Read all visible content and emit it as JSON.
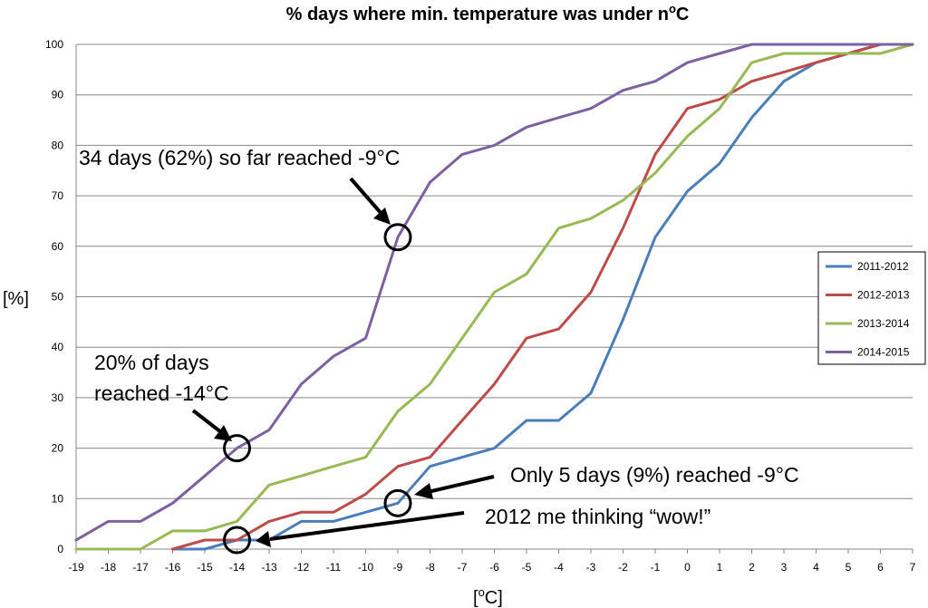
{
  "chart_data": {
    "type": "line",
    "title_main": "% days where min. temperature was under n",
    "title_sup": "o",
    "title_unit": "C",
    "xlabel_pre": "[",
    "xlabel_sup": "o",
    "xlabel_post": "C]",
    "ylabel": "[%]",
    "x": [
      -19,
      -18,
      -17,
      -16,
      -15,
      -14,
      -13,
      -12,
      -11,
      -10,
      -9,
      -8,
      -7,
      -6,
      -5,
      -4,
      -3,
      -2,
      -1,
      0,
      1,
      2,
      3,
      4,
      5,
      6,
      7
    ],
    "xlim": [
      -19,
      7
    ],
    "ylim": [
      0,
      100
    ],
    "yticks": [
      0,
      10,
      20,
      30,
      40,
      50,
      60,
      70,
      80,
      90,
      100
    ],
    "grid": true,
    "legend_position": "right",
    "series": [
      {
        "name": "2011-2012",
        "color": "#4a7ebb",
        "values": [
          null,
          null,
          null,
          0,
          0,
          1.8,
          1.8,
          5.5,
          5.5,
          7.3,
          9.1,
          16.4,
          18.2,
          20,
          25.5,
          25.5,
          30.9,
          45.5,
          61.8,
          70.9,
          76.4,
          85.5,
          92.7,
          96.4,
          98.2,
          100,
          100
        ]
      },
      {
        "name": "2012-2013",
        "color": "#be4b48",
        "values": [
          null,
          null,
          null,
          0,
          1.8,
          1.8,
          5.5,
          7.3,
          7.3,
          10.9,
          16.4,
          18.2,
          25.5,
          32.7,
          41.8,
          43.6,
          50.9,
          63.6,
          78.2,
          87.3,
          89.1,
          92.7,
          94.5,
          96.4,
          98.2,
          100,
          100
        ]
      },
      {
        "name": "2013-2014",
        "color": "#98b954",
        "values": [
          0,
          0,
          0,
          3.6,
          3.6,
          5.5,
          12.7,
          14.5,
          16.4,
          18.2,
          27.3,
          32.7,
          41.8,
          50.9,
          54.5,
          63.6,
          65.5,
          69.1,
          74.5,
          81.8,
          87.3,
          96.4,
          98.2,
          98.2,
          98.2,
          98.2,
          100
        ]
      },
      {
        "name": "2014-2015",
        "color": "#7d60a0",
        "values": [
          1.8,
          5.5,
          5.5,
          9.1,
          14.5,
          20,
          23.6,
          32.7,
          38.2,
          41.8,
          61.8,
          72.7,
          78.2,
          80,
          83.6,
          85.5,
          87.3,
          90.9,
          92.7,
          96.4,
          98.2,
          100,
          100,
          100,
          100,
          100,
          100
        ]
      }
    ],
    "annotations": {
      "a1": "34 days (62%) so far reached -9°C",
      "a2_line1": "20% of days",
      "a2_line2": "reached -14°C",
      "a3": "Only 5 days (9%) reached -9°C",
      "a4": "2012 me thinking “wow!”"
    },
    "highlights": [
      {
        "x": -9,
        "y": 61.8
      },
      {
        "x": -14,
        "y": 20
      },
      {
        "x": -9,
        "y": 9.1
      },
      {
        "x": -14,
        "y": 1.8
      }
    ]
  }
}
